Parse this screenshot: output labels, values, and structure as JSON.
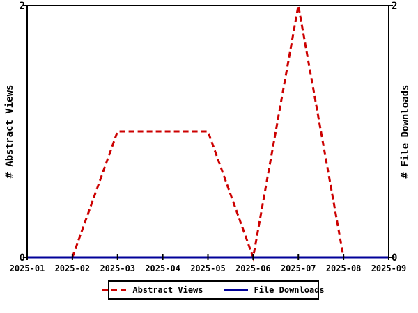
{
  "chart_data": {
    "type": "line",
    "categories": [
      "2025-01",
      "2025-02",
      "2025-03",
      "2025-04",
      "2025-05",
      "2025-06",
      "2025-07",
      "2025-08",
      "2025-09"
    ],
    "series": [
      {
        "name": "Abstract Views",
        "values": [
          0,
          0,
          1,
          1,
          1,
          0,
          2,
          0,
          0
        ],
        "color": "#cc0000",
        "line_style": "dashed"
      },
      {
        "name": "File Downloads",
        "values": [
          0,
          0,
          0,
          0,
          0,
          0,
          0,
          0,
          0
        ],
        "color": "#000099",
        "line_style": "solid"
      }
    ],
    "ylabel_left": "# Abstract Views",
    "ylabel_right": "# File Downloads",
    "ylim": [
      0,
      2
    ],
    "y_tick_labels": {
      "top": "2",
      "bottom": "0"
    },
    "grid": false,
    "legend_position": "bottom-center",
    "axis_color": "#000000",
    "background_color": "#ffffff"
  }
}
